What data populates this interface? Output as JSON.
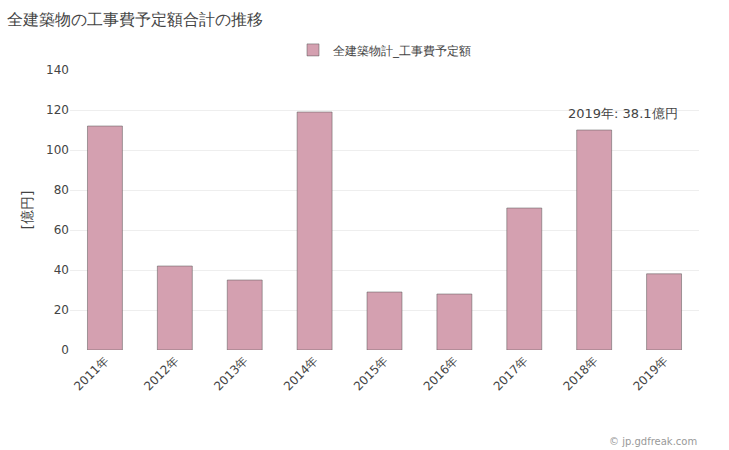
{
  "chart_data": {
    "type": "bar",
    "title": "全建築物の工事費予定額合計の推移",
    "ylabel": "[億円]",
    "annotations": [
      "2019年: 38.1億円",
      "© jp.gdfreak.com"
    ],
    "categories": [
      "2011年",
      "2012年",
      "2013年",
      "2014年",
      "2015年",
      "2016年",
      "2017年",
      "2018年",
      "2019年"
    ],
    "series": [
      {
        "name": "全建築物計_工事費予定額",
        "color": "#d4a0b0",
        "values": [
          112.0,
          42.0,
          35.0,
          119.0,
          29.0,
          28.0,
          71.0,
          110.0,
          38.1
        ]
      }
    ],
    "ylim": [
      0,
      140
    ],
    "yticks": [
      0,
      20,
      40,
      60,
      80,
      100,
      120,
      140
    ],
    "grid": true,
    "legend": "top"
  }
}
